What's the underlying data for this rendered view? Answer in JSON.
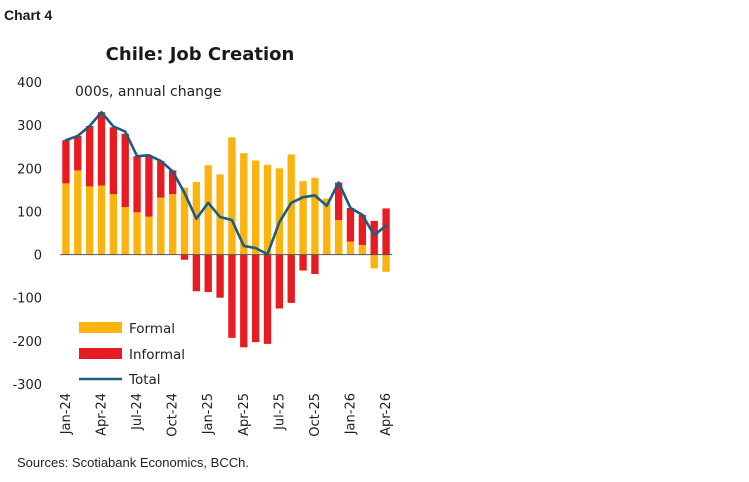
{
  "header": {
    "chart_number": "Chart 4"
  },
  "footer": {
    "source": "Sources: Scotiabank Economics, BCCh."
  },
  "colors": {
    "formal": "#FBB40F",
    "informal": "#E81B23",
    "total": "#1B5C7F",
    "zero_line": "#555555"
  },
  "chart_data": {
    "type": "bar",
    "title": "Chile: Job Creation",
    "ylabel": "000s, annual change",
    "xlabel": "",
    "ylim": [
      -300,
      400
    ],
    "yticks": [
      400,
      300,
      200,
      100,
      0,
      -100,
      -200,
      -300
    ],
    "grid": false,
    "legend_position": "bottom-left",
    "categories": [
      "Jan-24",
      "Feb-24",
      "Mar-24",
      "Apr-24",
      "May-24",
      "Jun-24",
      "Jul-24",
      "Aug-24",
      "Sep-24",
      "Oct-24",
      "Nov-24",
      "Dec-24",
      "Jan-25",
      "Feb-25",
      "Mar-25",
      "Apr-25",
      "May-25",
      "Jun-25",
      "Jul-25",
      "Aug-25",
      "Sep-25",
      "Oct-25",
      "Nov-25",
      "Dec-25",
      "Jan-26",
      "Feb-26",
      "Mar-26",
      "Apr-26"
    ],
    "xtick_labels": [
      "Jan-24",
      "Apr-24",
      "Jul-24",
      "Oct-24",
      "Jan-25",
      "Apr-25",
      "Jul-25",
      "Oct-25",
      "Jan-26",
      "Apr-26"
    ],
    "xtick_indices": [
      0,
      3,
      6,
      9,
      12,
      15,
      18,
      21,
      24,
      27
    ],
    "series": [
      {
        "name": "Formal",
        "kind": "bar",
        "values": [
          165,
          195,
          158,
          160,
          140,
          110,
          98,
          88,
          132,
          140,
          155,
          168,
          207,
          186,
          272,
          235,
          218,
          208,
          200,
          232,
          170,
          178,
          130,
          80,
          30,
          22,
          -32,
          -40
        ]
      },
      {
        "name": "Informal",
        "kind": "bar",
        "values": [
          100,
          80,
          140,
          170,
          155,
          170,
          130,
          140,
          85,
          55,
          -12,
          -85,
          -87,
          -100,
          -193,
          -215,
          -203,
          -207,
          -125,
          -112,
          -37,
          -45,
          0,
          87,
          78,
          70,
          78,
          107
        ]
      },
      {
        "name": "Total",
        "kind": "line",
        "values": [
          265,
          275,
          298,
          330,
          297,
          285,
          228,
          230,
          217,
          193,
          143,
          83,
          120,
          87,
          80,
          20,
          15,
          1,
          75,
          120,
          133,
          137,
          113,
          167,
          108,
          92,
          45,
          67
        ]
      }
    ]
  }
}
